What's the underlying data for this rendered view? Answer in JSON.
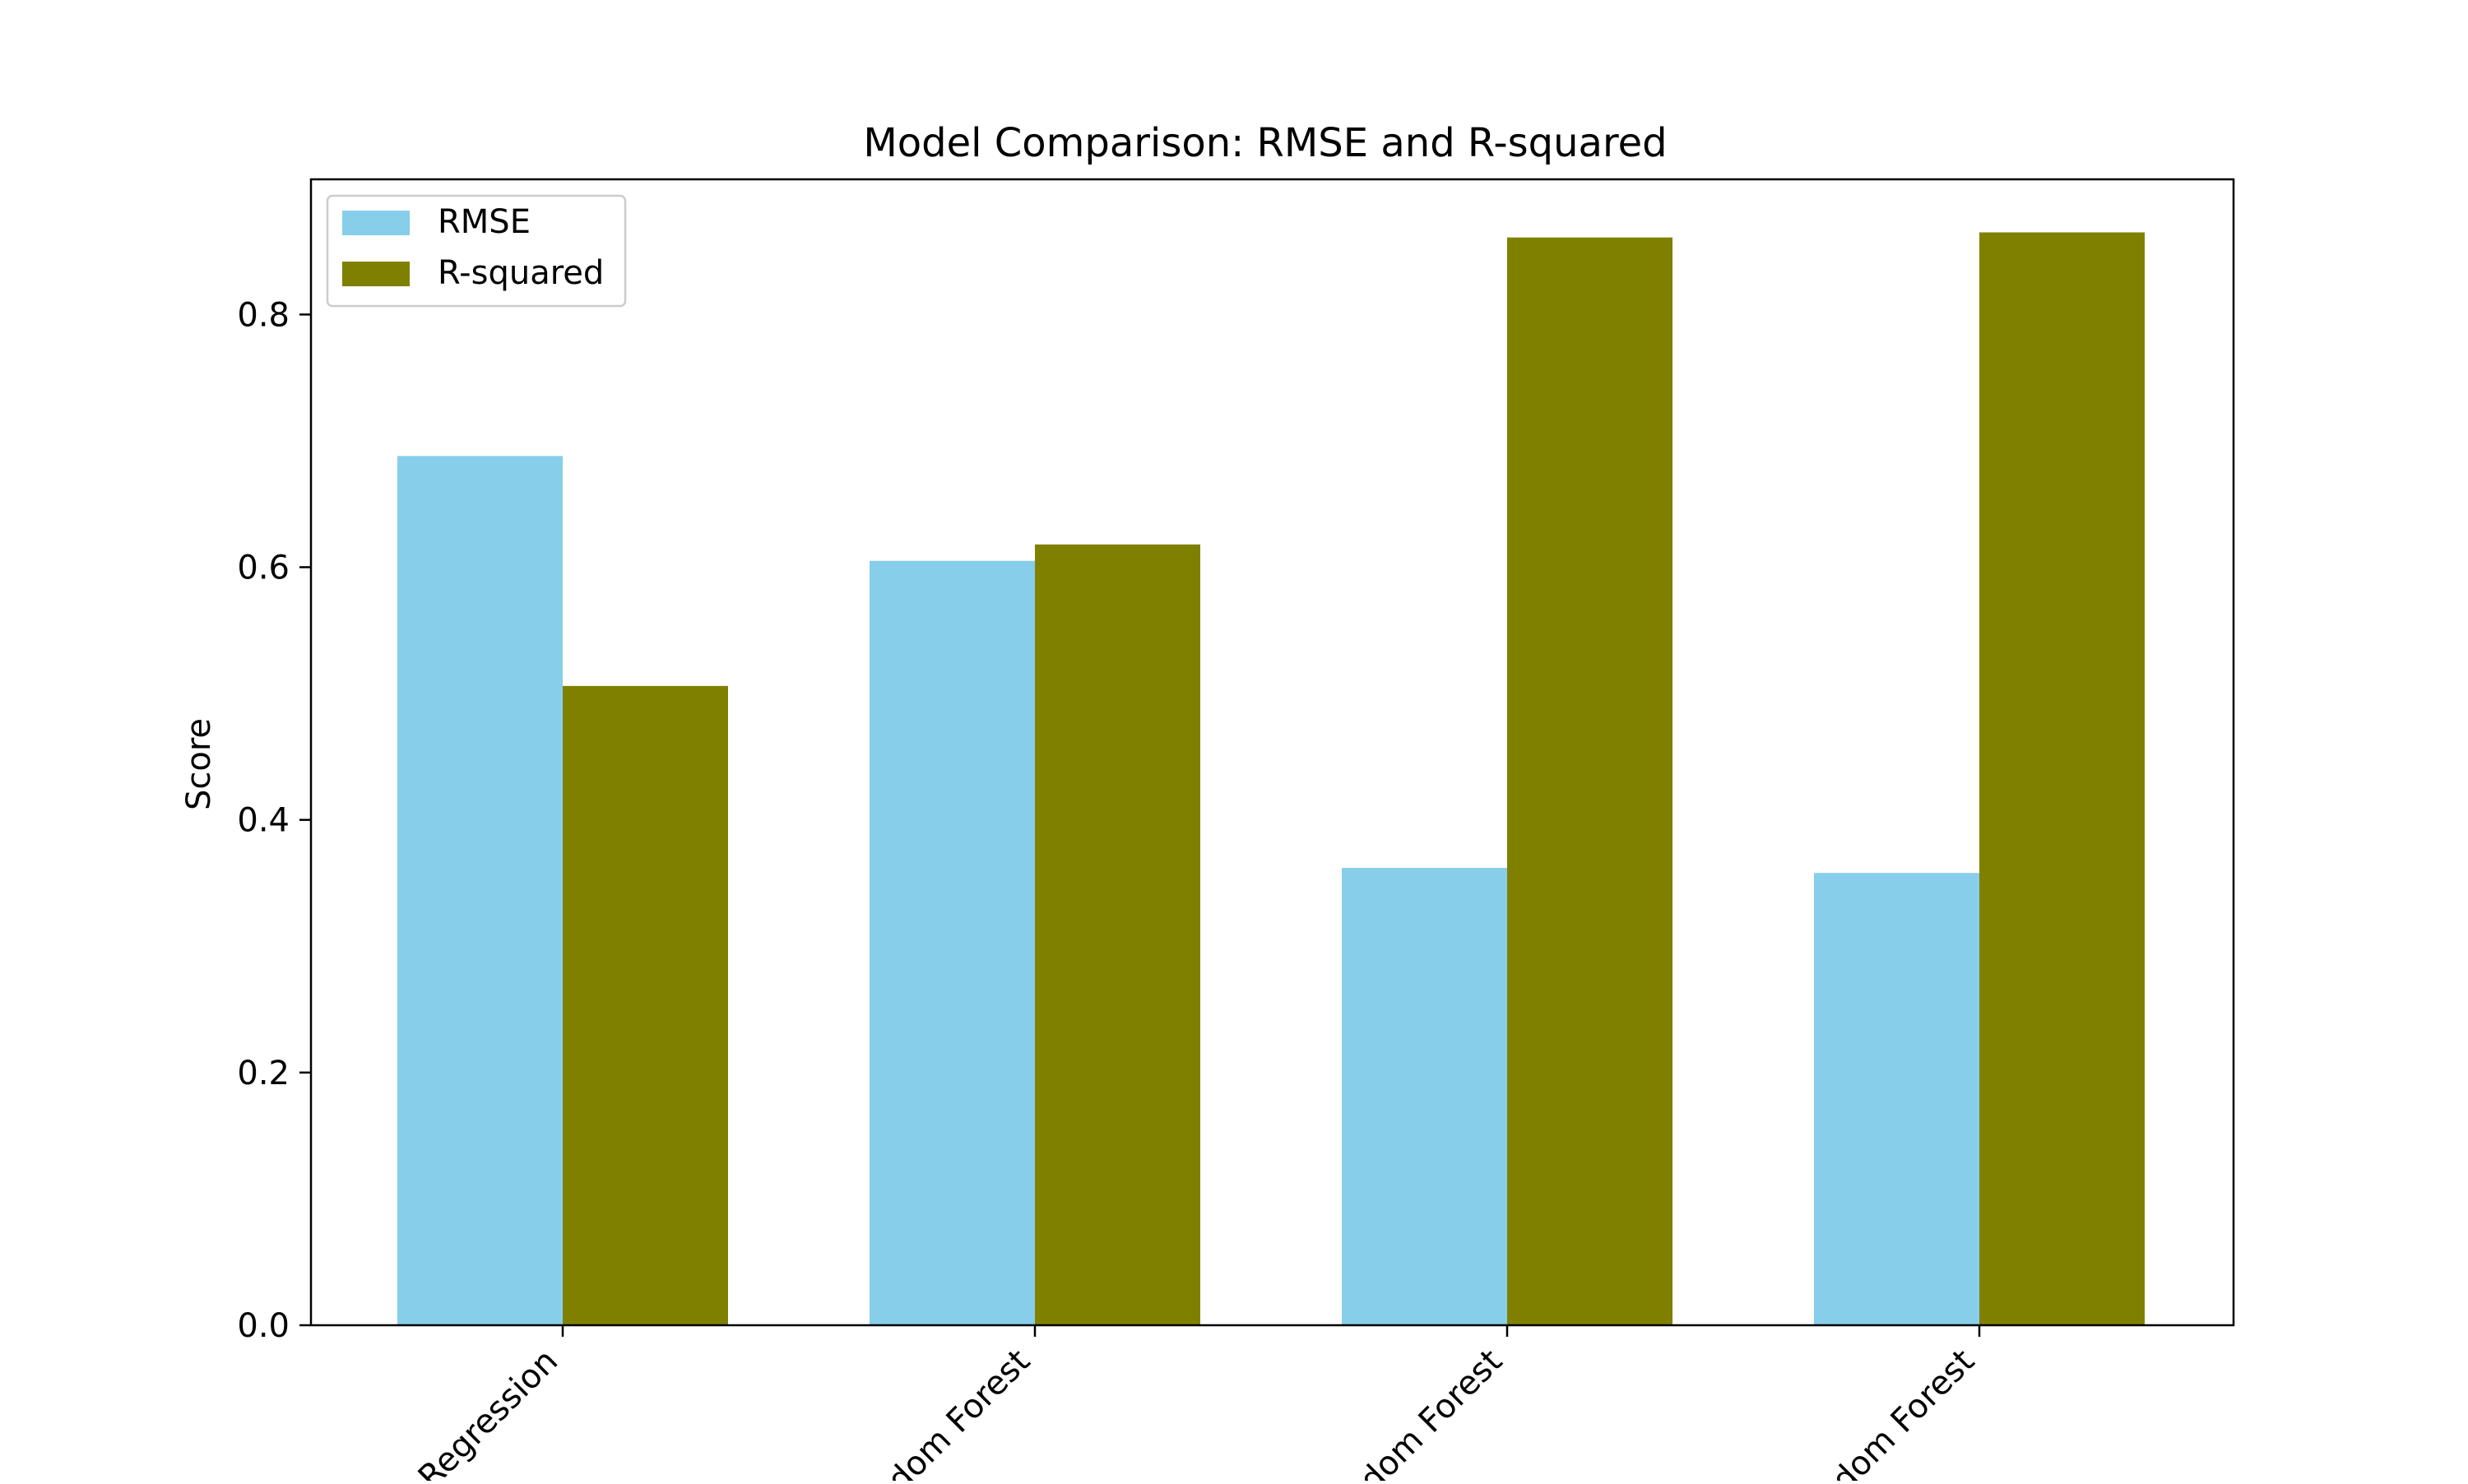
{
  "chart_data": {
    "type": "bar",
    "title": "Model Comparison: RMSE and R-squared",
    "xlabel": "",
    "ylabel": "Score",
    "categories": [
      "Linear Regression",
      "Random Forest",
      "Tuned Random Forest",
      "Final Random Forest"
    ],
    "visible_tick_labels": [
      "Regression",
      "dom Forest",
      "dom Forest",
      "dom Forest"
    ],
    "series": [
      {
        "name": "RMSE",
        "color": "#87CEEB",
        "values": [
          0.688,
          0.605,
          0.362,
          0.358
        ]
      },
      {
        "name": "R-squared",
        "color": "#808000",
        "values": [
          0.506,
          0.618,
          0.861,
          0.865
        ]
      }
    ],
    "ylim": [
      0,
      0.907
    ],
    "yticks": [
      0.0,
      0.2,
      0.4,
      0.6,
      0.8
    ],
    "ytick_labels": [
      "0.0",
      "0.2",
      "0.4",
      "0.6",
      "0.8"
    ],
    "grid": false,
    "legend": "top-left",
    "xtick_rotation": -45
  }
}
